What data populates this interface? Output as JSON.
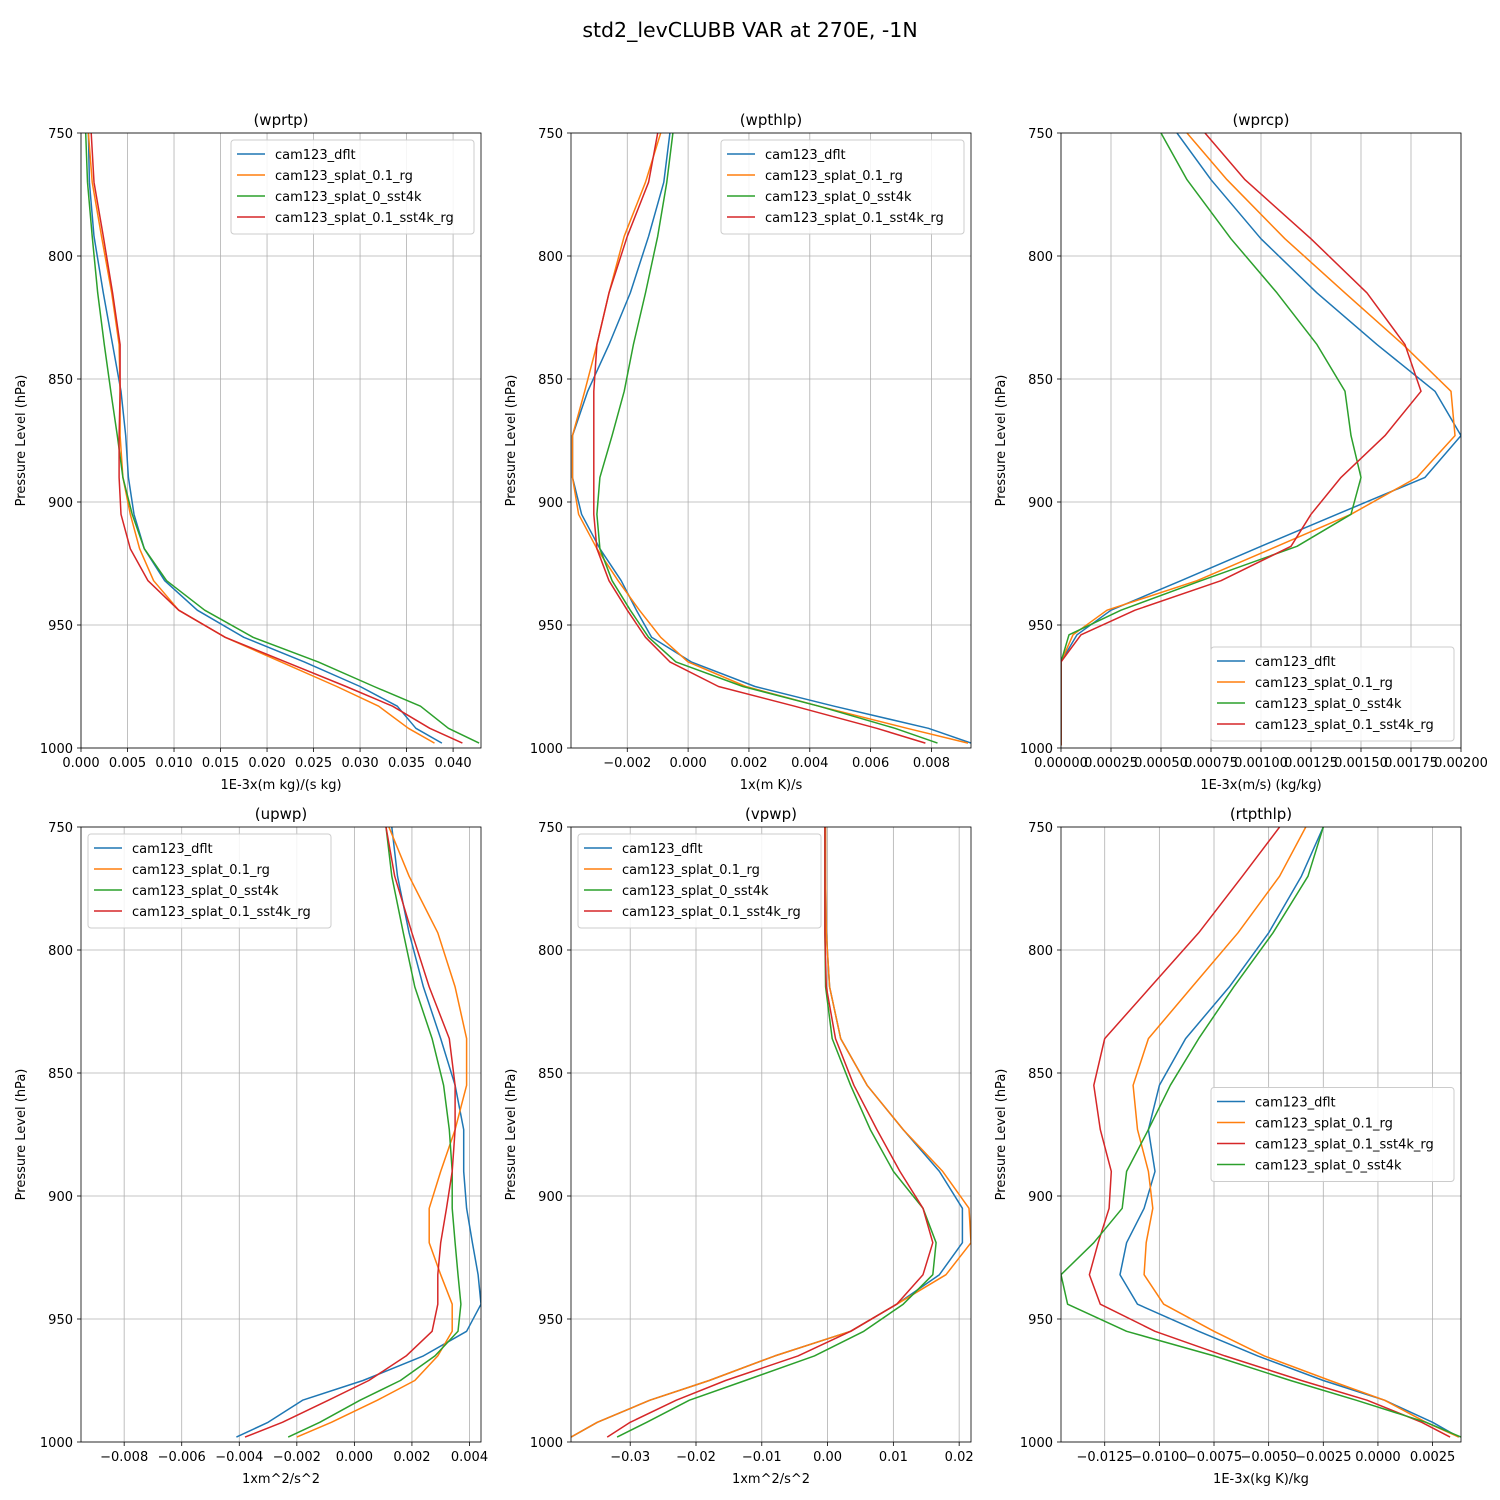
{
  "figure": {
    "title": "std2_levCLUBB VAR at 270E, -1N"
  },
  "series_colors": {
    "cam123_dflt": "#1f77b4",
    "cam123_splat_0.1_rg": "#ff7f0e",
    "cam123_splat_0_sst4k": "#2ca02c",
    "cam123_splat_0.1_sst4k_rg": "#d62728"
  },
  "chart_data": [
    {
      "type": "line",
      "title": "(wprtp)",
      "xlabel": "1E-3x(m kg)/(s kg)",
      "ylabel": "Pressure Level (hPa)",
      "xlim": [
        0,
        0.043
      ],
      "ylim": [
        1000,
        750
      ],
      "xticks": [
        0,
        0.005,
        0.01,
        0.015,
        0.02,
        0.025,
        0.03,
        0.035,
        0.04
      ],
      "xtick_labels": [
        "0.000",
        "0.005",
        "0.010",
        "0.015",
        "0.020",
        "0.025",
        "0.030",
        "0.035",
        "0.040"
      ],
      "yticks": [
        750,
        800,
        850,
        900,
        950,
        1000
      ],
      "ytick_labels": [
        "750",
        "800",
        "850",
        "900",
        "950",
        "1000"
      ],
      "grid": true,
      "legend": "upper right",
      "y": [
        750,
        770,
        792,
        815,
        836,
        855,
        873,
        890,
        905,
        919,
        932,
        944,
        955,
        965,
        975,
        983,
        992,
        998
      ],
      "series": [
        {
          "name": "cam123_dflt",
          "values": [
            0.0008,
            0.0009,
            0.0014,
            0.0024,
            0.0034,
            0.0043,
            0.0048,
            0.0051,
            0.0057,
            0.0068,
            0.009,
            0.0125,
            0.0175,
            0.024,
            0.03,
            0.034,
            0.036,
            0.0388
          ]
        },
        {
          "name": "cam123_splat_0.1_rg",
          "values": [
            0.0008,
            0.0012,
            0.0022,
            0.0033,
            0.0041,
            0.0042,
            0.0042,
            0.0045,
            0.0053,
            0.0063,
            0.0078,
            0.0105,
            0.0155,
            0.0215,
            0.0275,
            0.032,
            0.0352,
            0.038
          ]
        },
        {
          "name": "cam123_splat_0_sst4k",
          "values": [
            0.0005,
            0.0007,
            0.0012,
            0.0018,
            0.0025,
            0.0032,
            0.0039,
            0.0045,
            0.0055,
            0.0068,
            0.0092,
            0.0133,
            0.0185,
            0.0255,
            0.0315,
            0.0365,
            0.0395,
            0.0428
          ]
        },
        {
          "name": "cam123_splat_0.1_sst4k_rg",
          "values": [
            0.0011,
            0.0014,
            0.0024,
            0.0034,
            0.0042,
            0.0042,
            0.0041,
            0.0041,
            0.0043,
            0.0053,
            0.0072,
            0.0105,
            0.0155,
            0.022,
            0.0285,
            0.0335,
            0.0375,
            0.041
          ]
        }
      ]
    },
    {
      "type": "line",
      "title": "(wpthlp)",
      "xlabel": "1x(m K)/s",
      "ylabel": "Pressure Level (hPa)",
      "xlim": [
        -0.00385,
        0.0093
      ],
      "ylim": [
        1000,
        750
      ],
      "xticks": [
        -0.002,
        0,
        0.002,
        0.004,
        0.006,
        0.008
      ],
      "xtick_labels": [
        "−0.002",
        "0.000",
        "0.002",
        "0.004",
        "0.006",
        "0.008"
      ],
      "yticks": [
        750,
        800,
        850,
        900,
        950,
        1000
      ],
      "ytick_labels": [
        "750",
        "800",
        "850",
        "900",
        "950",
        "1000"
      ],
      "grid": true,
      "legend": "upper right",
      "y": [
        750,
        770,
        792,
        815,
        836,
        855,
        873,
        890,
        905,
        919,
        932,
        944,
        955,
        965,
        975,
        983,
        992,
        998
      ],
      "series": [
        {
          "name": "cam123_dflt",
          "values": [
            -0.0006,
            -0.0008,
            -0.0013,
            -0.0019,
            -0.0026,
            -0.0033,
            -0.0038,
            -0.0038,
            -0.0035,
            -0.0029,
            -0.0022,
            -0.0017,
            -0.0012,
            0.0001,
            0.0022,
            0.0048,
            0.0079,
            0.0093
          ]
        },
        {
          "name": "cam123_splat_0.1_rg",
          "values": [
            -0.0009,
            -0.0014,
            -0.0021,
            -0.0026,
            -0.003,
            -0.0034,
            -0.0038,
            -0.0038,
            -0.0036,
            -0.003,
            -0.0023,
            -0.0016,
            -0.0009,
            0.0,
            0.0019,
            0.0043,
            0.0072,
            0.0092
          ]
        },
        {
          "name": "cam123_splat_0_sst4k",
          "values": [
            -0.0005,
            -0.0007,
            -0.001,
            -0.0014,
            -0.0018,
            -0.0021,
            -0.0025,
            -0.0029,
            -0.003,
            -0.0029,
            -0.0025,
            -0.0019,
            -0.0013,
            -0.0004,
            0.0018,
            0.0043,
            0.0068,
            0.0082
          ]
        },
        {
          "name": "cam123_splat_0.1_sst4k_rg",
          "values": [
            -0.001,
            -0.0013,
            -0.002,
            -0.0026,
            -0.003,
            -0.0031,
            -0.0031,
            -0.0031,
            -0.0031,
            -0.003,
            -0.0026,
            -0.002,
            -0.0014,
            -0.0006,
            0.001,
            0.0035,
            0.0062,
            0.0078
          ]
        }
      ]
    },
    {
      "type": "line",
      "title": "(wprcp)",
      "xlabel": "1E-3x(m/s) (kg/kg)",
      "ylabel": "Pressure Level (hPa)",
      "xlim": [
        0,
        0.002
      ],
      "ylim": [
        1000,
        750
      ],
      "xticks": [
        0,
        0.00025,
        0.0005,
        0.00075,
        0.001,
        0.00125,
        0.0015,
        0.00175,
        0.002
      ],
      "xtick_labels": [
        "0.00000",
        "0.00025",
        "0.00050",
        "0.00075",
        "0.00100",
        "0.00125",
        "0.00150",
        "0.00175",
        "0.00200"
      ],
      "yticks": [
        750,
        800,
        850,
        900,
        950,
        1000
      ],
      "ytick_labels": [
        "750",
        "800",
        "850",
        "900",
        "950",
        "1000"
      ],
      "grid": true,
      "legend": "lower right",
      "y": [
        750,
        769,
        793,
        815,
        836,
        855,
        873,
        890,
        905,
        918,
        932,
        944,
        954,
        965,
        975,
        983,
        992,
        999
      ],
      "series": [
        {
          "name": "cam123_dflt",
          "values": [
            0.00058,
            0.00075,
            0.001,
            0.00128,
            0.00158,
            0.00187,
            0.002,
            0.00182,
            0.00138,
            0.001,
            0.0006,
            0.00025,
            8e-05,
            0.0,
            0.0,
            0.0,
            0.0,
            0.0
          ]
        },
        {
          "name": "cam123_splat_0.1_rg",
          "values": [
            0.00063,
            0.00083,
            0.00112,
            0.00142,
            0.00171,
            0.00195,
            0.00197,
            0.00178,
            0.00145,
            0.00108,
            0.00068,
            0.00023,
            6e-05,
            0.0,
            0.0,
            0.0,
            0.0,
            0.0
          ]
        },
        {
          "name": "cam123_splat_0_sst4k",
          "values": [
            0.0005,
            0.00063,
            0.00085,
            0.00108,
            0.00128,
            0.00142,
            0.00145,
            0.0015,
            0.00145,
            0.00118,
            0.0007,
            0.0003,
            4e-05,
            0.0,
            0.0,
            0.0,
            0.0,
            0.0
          ]
        },
        {
          "name": "cam123_splat_0.1_sst4k_rg",
          "values": [
            0.00072,
            0.00092,
            0.00125,
            0.00153,
            0.00172,
            0.0018,
            0.00162,
            0.0014,
            0.00125,
            0.00115,
            0.0008,
            0.00037,
            0.0001,
            0.0,
            0.0,
            0.0,
            0.0,
            0.0
          ]
        }
      ]
    },
    {
      "type": "line",
      "title": "(upwp)",
      "xlabel": "1xm^2/s^2",
      "ylabel": "Pressure Level (hPa)",
      "xlim": [
        -0.0095,
        0.0044
      ],
      "ylim": [
        1000,
        750
      ],
      "xticks": [
        -0.008,
        -0.006,
        -0.004,
        -0.002,
        0,
        0.002,
        0.004
      ],
      "xtick_labels": [
        "−0.008",
        "−0.006",
        "−0.004",
        "−0.002",
        "0.000",
        "0.002",
        "0.004"
      ],
      "yticks": [
        750,
        800,
        850,
        900,
        950,
        1000
      ],
      "ytick_labels": [
        "750",
        "800",
        "850",
        "900",
        "950",
        "1000"
      ],
      "grid": true,
      "legend": "upper left",
      "y": [
        750,
        770,
        793,
        815,
        836,
        855,
        873,
        890,
        905,
        919,
        932,
        944,
        955,
        965,
        975,
        983,
        992,
        998
      ],
      "series": [
        {
          "name": "cam123_dflt",
          "values": [
            0.0013,
            0.0015,
            0.0019,
            0.0024,
            0.003,
            0.0035,
            0.0038,
            0.0038,
            0.0039,
            0.0041,
            0.0043,
            0.0044,
            0.0039,
            0.0024,
            0.0003,
            -0.0018,
            -0.003,
            -0.0041
          ]
        },
        {
          "name": "cam123_splat_0.1_rg",
          "values": [
            0.0012,
            0.0019,
            0.0029,
            0.0035,
            0.0039,
            0.0039,
            0.0035,
            0.003,
            0.0026,
            0.0026,
            0.003,
            0.0034,
            0.0034,
            0.0029,
            0.0021,
            0.0008,
            -0.0008,
            -0.002
          ]
        },
        {
          "name": "cam123_splat_0_sst4k",
          "values": [
            0.0011,
            0.0013,
            0.0017,
            0.0021,
            0.0027,
            0.0031,
            0.0033,
            0.0034,
            0.0034,
            0.0035,
            0.0036,
            0.0037,
            0.0036,
            0.0028,
            0.0016,
            0.0002,
            -0.0012,
            -0.0023
          ]
        },
        {
          "name": "cam123_splat_0.1_sst4k_rg",
          "values": [
            0.0011,
            0.0014,
            0.002,
            0.0026,
            0.0033,
            0.0035,
            0.0035,
            0.0034,
            0.0032,
            0.003,
            0.0029,
            0.0029,
            0.0027,
            0.0018,
            0.0005,
            -0.0009,
            -0.0025,
            -0.0038
          ]
        }
      ]
    },
    {
      "type": "line",
      "title": "(vpwp)",
      "xlabel": "1xm^2/s^2",
      "ylabel": "Pressure Level (hPa)",
      "xlim": [
        -0.039,
        0.0218
      ],
      "ylim": [
        1000,
        750
      ],
      "xticks": [
        -0.03,
        -0.02,
        -0.01,
        0,
        0.01,
        0.02
      ],
      "xtick_labels": [
        "−0.03",
        "−0.02",
        "−0.01",
        "0.00",
        "0.01",
        "0.02"
      ],
      "yticks": [
        750,
        800,
        850,
        900,
        950,
        1000
      ],
      "ytick_labels": [
        "750",
        "800",
        "850",
        "900",
        "950",
        "1000"
      ],
      "grid": true,
      "legend": "upper left",
      "y": [
        750,
        770,
        793,
        815,
        836,
        855,
        873,
        890,
        905,
        919,
        932,
        944,
        955,
        965,
        975,
        983,
        992,
        998
      ],
      "series": [
        {
          "name": "cam123_dflt",
          "values": [
            -0.0003,
            -0.0003,
            -0.0002,
            0.0003,
            0.002,
            0.006,
            0.0115,
            0.017,
            0.0205,
            0.0205,
            0.017,
            0.0105,
            0.0035,
            -0.008,
            -0.018,
            -0.027,
            -0.035,
            -0.039
          ]
        },
        {
          "name": "cam123_splat_0.1_rg",
          "values": [
            -0.0003,
            -0.0003,
            -0.0002,
            0.0003,
            0.002,
            0.006,
            0.0115,
            0.0175,
            0.0215,
            0.0218,
            0.018,
            0.0105,
            0.0035,
            -0.008,
            -0.018,
            -0.027,
            -0.035,
            -0.039
          ]
        },
        {
          "name": "cam123_splat_0_sst4k",
          "values": [
            -0.0004,
            -0.0004,
            -0.0004,
            -0.0003,
            0.0007,
            0.0035,
            0.0065,
            0.01,
            0.0145,
            0.0165,
            0.016,
            0.0115,
            0.0055,
            -0.002,
            -0.0125,
            -0.021,
            -0.0275,
            -0.032
          ]
        },
        {
          "name": "cam123_splat_0.1_sst4k_rg",
          "values": [
            -0.0004,
            -0.0004,
            -0.0004,
            -0.0002,
            0.0012,
            0.004,
            0.0075,
            0.011,
            0.0145,
            0.016,
            0.0145,
            0.0105,
            0.0035,
            -0.0045,
            -0.0155,
            -0.023,
            -0.03,
            -0.0335
          ]
        }
      ]
    },
    {
      "type": "line",
      "title": "(rtpthlp)",
      "xlabel": "1E-3x(kg K)/kg",
      "ylabel": "Pressure Level (hPa)",
      "xlim": [
        -0.0145,
        0.0038
      ],
      "ylim": [
        1000,
        750
      ],
      "xticks": [
        -0.0125,
        -0.01,
        -0.0075,
        -0.005,
        -0.0025,
        0,
        0.0025
      ],
      "xtick_labels": [
        "−0.0125",
        "−0.0100",
        "−0.0075",
        "−0.0050",
        "−0.0025",
        "0.0000",
        "0.0025"
      ],
      "yticks": [
        750,
        800,
        850,
        900,
        950,
        1000
      ],
      "ytick_labels": [
        "750",
        "800",
        "850",
        "900",
        "950",
        "1000"
      ],
      "grid": true,
      "legend": "center right",
      "y": [
        750,
        770,
        793,
        815,
        836,
        855,
        873,
        890,
        905,
        919,
        932,
        944,
        955,
        965,
        975,
        983,
        992,
        998
      ],
      "series": [
        {
          "name": "cam123_dflt",
          "values": [
            -0.0025,
            -0.0035,
            -0.005,
            -0.0068,
            -0.0088,
            -0.01,
            -0.0105,
            -0.0102,
            -0.0107,
            -0.0115,
            -0.0118,
            -0.011,
            -0.0082,
            -0.0055,
            -0.0025,
            0.0003,
            0.0025,
            0.0037
          ]
        },
        {
          "name": "cam123_splat_0.1_rg",
          "values": [
            -0.0033,
            -0.0045,
            -0.0064,
            -0.0085,
            -0.0105,
            -0.0112,
            -0.011,
            -0.0105,
            -0.0103,
            -0.0106,
            -0.0107,
            -0.0098,
            -0.0075,
            -0.0052,
            -0.0022,
            0.0003,
            0.0022,
            0.0037
          ]
        },
        {
          "name": "cam123_splat_0.1_sst4k_rg",
          "values": [
            -0.0045,
            -0.0062,
            -0.0082,
            -0.0104,
            -0.0125,
            -0.013,
            -0.0127,
            -0.0122,
            -0.0123,
            -0.0128,
            -0.0132,
            -0.0127,
            -0.0102,
            -0.007,
            -0.0035,
            -0.0005,
            0.002,
            0.0033
          ]
        },
        {
          "name": "cam123_splat_0_sst4k",
          "values": [
            -0.0025,
            -0.0032,
            -0.0048,
            -0.0066,
            -0.0082,
            -0.0095,
            -0.0105,
            -0.0115,
            -0.0117,
            -0.013,
            -0.0145,
            -0.0142,
            -0.0115,
            -0.0075,
            -0.004,
            -0.001,
            0.0022,
            0.0038
          ]
        }
      ]
    }
  ]
}
